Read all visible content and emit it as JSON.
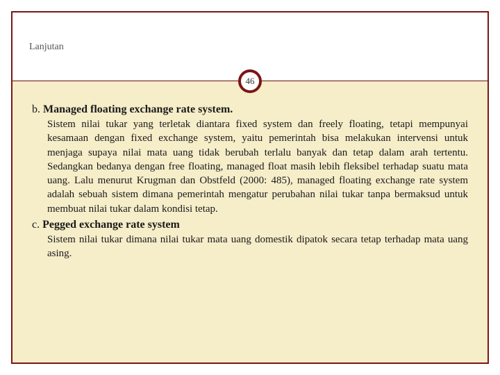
{
  "colors": {
    "frame_border": "#7a1616",
    "divider": "#6a1010",
    "content_bg": "#f6edc9",
    "header_bg": "#ffffff",
    "text": "#1a1a1a",
    "header_text": "#555555"
  },
  "typography": {
    "body_font": "Georgia, serif",
    "heading_size_pt": 12,
    "body_size_pt": 11,
    "lead_size_pt": 13
  },
  "header": {
    "title": "Lanjutan"
  },
  "page_number": "46",
  "sections": [
    {
      "marker": "b. ",
      "title": "Managed floating exchange rate system.",
      "body_lead": "Sistem nilai tukar yang terletak diantara fixed system dan freely floating,",
      "body_rest": " tetapi mempunyai kesamaan dengan fixed exchange system, yaitu pemerintah bisa melakukan intervensi untuk menjaga supaya nilai mata uang tidak berubah terlalu banyak dan tetap dalam arah tertentu. Sedangkan bedanya dengan free floating, managed float masih lebih fleksibel terhadap suatu mata uang. Lalu menurut Krugman dan Obstfeld (2000: 485), managed floating exchange rate system adalah sebuah sistem dimana pemerintah mengatur perubahan nilai tukar tanpa bermaksud untuk membuat nilai tukar dalam kondisi tetap."
    },
    {
      "marker": "c. ",
      "title": "Pegged exchange rate system",
      "body_lead": "",
      "body_rest": "Sistem nilai tukar dimana nilai tukar mata uang domestik dipatok secara tetap terhadap mata uang asing."
    }
  ]
}
